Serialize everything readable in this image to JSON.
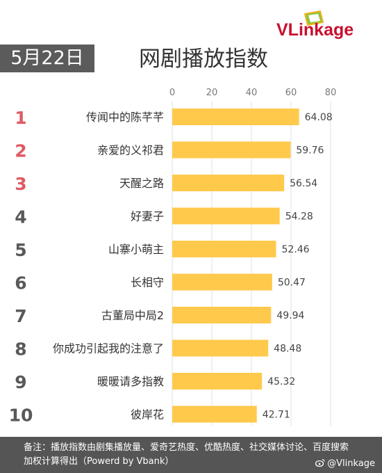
{
  "logo": {
    "text": "VLinkage"
  },
  "header": {
    "date_label": "5月22日",
    "title": "网剧播放指数"
  },
  "chart_data": {
    "type": "bar",
    "orientation": "horizontal",
    "title": "网剧播放指数",
    "xlim": [
      0,
      80
    ],
    "xticks": [
      "0",
      "20",
      "40",
      "60",
      "80"
    ],
    "grid": true,
    "ranks": [
      "1",
      "2",
      "3",
      "4",
      "5",
      "6",
      "7",
      "8",
      "9",
      "10"
    ],
    "categories": [
      "传闻中的陈芊芊",
      "亲爱的义祁君",
      "天醒之路",
      "好妻子",
      "山寨小萌主",
      "长相守",
      "古董局中局2",
      "你成功引起我的注意了",
      "暖暖请多指教",
      "彼岸花"
    ],
    "values": [
      64.08,
      59.76,
      56.54,
      54.28,
      52.46,
      50.47,
      49.94,
      48.48,
      45.32,
      42.71
    ],
    "value_labels": [
      "64.08",
      "59.76",
      "56.54",
      "54.28",
      "52.46",
      "50.47",
      "49.94",
      "48.48",
      "45.32",
      "42.71"
    ],
    "bar_color": "#ffc94c",
    "rank_color_top3": "#e05a63",
    "rank_color_rest": "#595959"
  },
  "footer": {
    "note": "备注：播放指数由剧集播放量、爱奇艺热度、优酷热度、社交媒体讨论、百度搜索加权计算得出（Powerd by Vbank）",
    "watermark": "@Vlinkage"
  }
}
